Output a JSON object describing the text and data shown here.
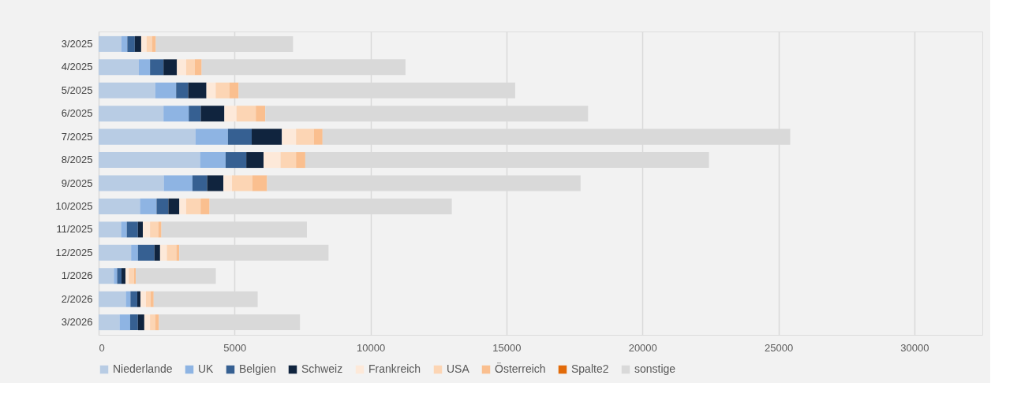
{
  "chart_data": {
    "type": "bar",
    "orientation": "horizontal",
    "stacked": true,
    "categories": [
      "3/2025",
      "4/2025",
      "5/2025",
      "6/2025",
      "7/2025",
      "8/2025",
      "9/2025",
      "10/2025",
      "11/2025",
      "12/2025",
      "1/2026",
      "2/2026",
      "3/2026"
    ],
    "series": [
      {
        "name": "Niederlande",
        "color": "#b8cce4",
        "values": [
          835,
          1480,
          2080,
          2385,
          3560,
          3730,
          2395,
          1520,
          825,
          1195,
          560,
          1000,
          770
        ]
      },
      {
        "name": "UK",
        "color": "#8eb4e3",
        "values": [
          220,
          410,
          770,
          930,
          1195,
          940,
          1055,
          610,
          210,
          250,
          120,
          170,
          390
        ]
      },
      {
        "name": "Belgien",
        "color": "#366092",
        "values": [
          275,
          495,
          445,
          440,
          875,
          760,
          540,
          435,
          410,
          605,
          160,
          250,
          285
        ]
      },
      {
        "name": "Schweiz",
        "color": "#10243e",
        "values": [
          235,
          495,
          670,
          870,
          1110,
          635,
          600,
          405,
          180,
          210,
          150,
          120,
          235
        ]
      },
      {
        "name": "Frankreich",
        "color": "#fde9d9",
        "values": [
          200,
          340,
          340,
          445,
          520,
          625,
          315,
          250,
          265,
          250,
          120,
          200,
          210
        ]
      },
      {
        "name": "USA",
        "color": "#fcd5b4",
        "values": [
          200,
          315,
          505,
          710,
          655,
          570,
          750,
          530,
          305,
          350,
          190,
          170,
          190
        ]
      },
      {
        "name": "Österreich",
        "color": "#fabf8f",
        "values": [
          140,
          255,
          340,
          350,
          320,
          340,
          540,
          330,
          115,
          105,
          65,
          115,
          140
        ]
      },
      {
        "name": "Spalte2",
        "color": "#e26b0a",
        "values": [
          0,
          0,
          0,
          0,
          0,
          0,
          0,
          0,
          0,
          0,
          0,
          0,
          0
        ]
      },
      {
        "name": "sonstige",
        "color": "#d9d9d9",
        "values": [
          5045,
          7495,
          10170,
          11870,
          17200,
          14845,
          11530,
          8910,
          5350,
          5490,
          2945,
          3825,
          5185
        ]
      }
    ],
    "xlim": [
      0,
      32500
    ],
    "xticks": [
      0,
      5000,
      10000,
      15000,
      20000,
      25000,
      30000
    ],
    "grid": "x",
    "legend": "bottom"
  }
}
